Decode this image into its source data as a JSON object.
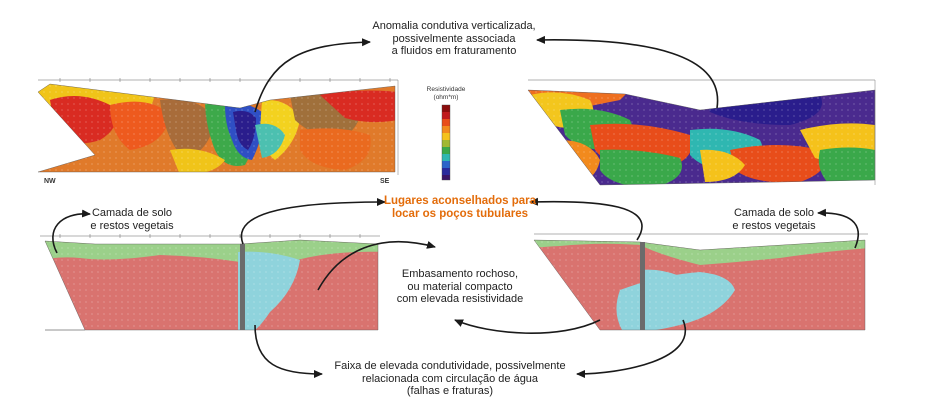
{
  "labels": {
    "anomaly": [
      "Anomalia condutiva verticalizada,",
      "possivelmente associada",
      "a fluidos em fraturamento"
    ],
    "wells": [
      "Lugares aconselhados para",
      "locar os poços tubulares"
    ],
    "soil_left": [
      "Camada de solo",
      "e restos vegetais"
    ],
    "soil_right": [
      "Camada de solo",
      "e restos vegetais"
    ],
    "bedrock": [
      "Embasamento rochoso,",
      "ou material compacto",
      "com elevada resistividade"
    ],
    "fault": [
      "Faixa de elevada condutividade, possivelmente",
      "relacionada com circulação de água",
      "(falhas e fraturas)"
    ]
  },
  "legend": {
    "title": [
      "Resistividade",
      "(ohm*m)"
    ]
  },
  "sections": {
    "dir_left": "NW",
    "dir_right": "SE"
  },
  "colors": {
    "rock": "#d9736f",
    "soil": "#9bd08a",
    "water": "#8fd3dc",
    "well": "#6b6b6b",
    "arrow": "#1a1a1a",
    "accent": "#e36c0a"
  }
}
